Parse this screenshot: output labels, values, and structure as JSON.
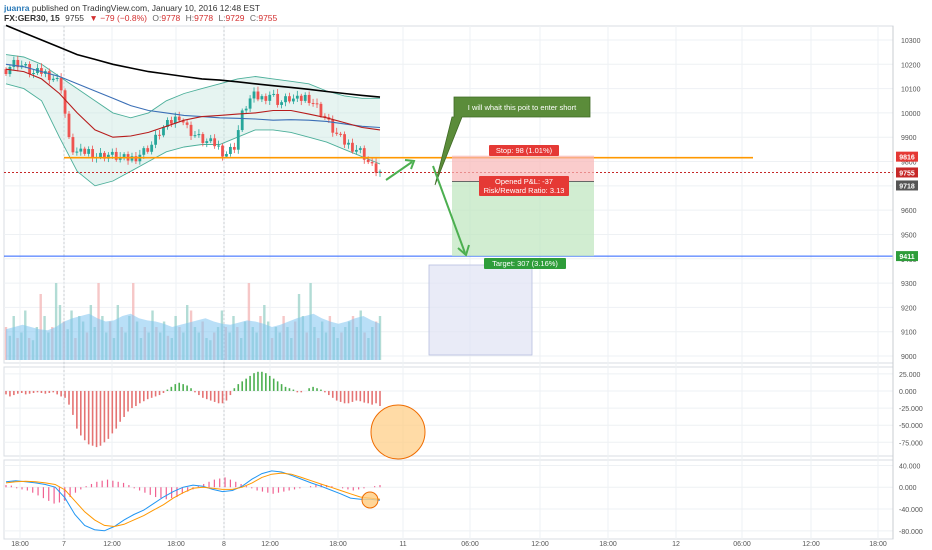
{
  "header": {
    "user": "juanra",
    "published": "published on TradingView.com, January 10, 2016 12:48 EST",
    "symbol": "FX:GER30, 15",
    "last": "9755",
    "arrow": "▼",
    "change": "−79 (−0.8%)",
    "o_label": "O:",
    "o_val": "9778",
    "h_label": "H:",
    "h_val": "9778",
    "l_label": "L:",
    "l_val": "9729",
    "c_label": "C:",
    "c_val": "9755"
  },
  "colors": {
    "up": "#26a69a",
    "down": "#ef5350",
    "orange": "#ff9800",
    "target_line": "#2962ff",
    "green_arrow": "#4caf50",
    "callout": "#5b8c3a"
  },
  "chart_data": {
    "type": "candlestick",
    "symbol": "FX:GER30",
    "interval": "15",
    "price_axis": {
      "ticks": [
        "10300",
        "10200",
        "10100",
        "10000",
        "9900",
        "9800",
        "9700",
        "9600",
        "9500",
        "9400",
        "9300",
        "9200",
        "9100",
        "9000"
      ],
      "min": 8985,
      "max": 10345
    },
    "time_axis": {
      "ticks": [
        "18:00",
        "7",
        "12:00",
        "18:00",
        "8",
        "12:00",
        "18:00",
        "11",
        "06:00",
        "12:00",
        "18:00",
        "12",
        "06:00",
        "12:00",
        "18:00"
      ]
    },
    "levels": {
      "resistance": 9816,
      "last_price": 9755,
      "entry": 9718,
      "target": 9411
    },
    "price_labels": {
      "resistance": "9816",
      "last": "9755",
      "entry": "9718",
      "target": "9411"
    },
    "close_path": [
      10180,
      10210,
      10190,
      10160,
      10170,
      10150,
      10120,
      9860,
      9830,
      9845,
      9820,
      9830,
      9820,
      9810,
      9815,
      9840,
      9870,
      9930,
      9960,
      9990,
      9930,
      9900,
      9880,
      9870,
      9830,
      9860,
      10010,
      10070,
      10060,
      10080,
      10040,
      10060,
      10050,
      10070,
      10030,
      9980,
      9920,
      9880,
      9860,
      9840,
      9780,
      9755
    ],
    "moving_averages": [
      {
        "color": "#000000",
        "values": [
          10360,
          10330,
          10300,
          10270,
          10240,
          10220,
          10200,
          10185,
          10170,
          10160,
          10150,
          10140,
          10135,
          10128,
          10120,
          10112,
          10105,
          10097,
          10088,
          10080,
          10072,
          10065
        ]
      },
      {
        "color": "#3b6fb6",
        "values": [
          10200,
          10190,
          10170,
          10150,
          10120,
          10090,
          10060,
          10030,
          10010,
          10000,
          9990,
          9985,
          9980,
          9978,
          9975,
          9970,
          9972,
          9970,
          9965,
          9955,
          9945,
          9940
        ]
      },
      {
        "color": "#b71c1c",
        "values": [
          10180,
          10170,
          10140,
          10080,
          10000,
          9930,
          9900,
          9905,
          9920,
          9945,
          9970,
          9985,
          9990,
          9995,
          10000,
          10010,
          10010,
          9995,
          9980,
          9960,
          9940,
          9930
        ]
      }
    ],
    "bollinger": {
      "upper": [
        10240,
        10230,
        10200,
        10150,
        10100,
        10050,
        10000,
        9980,
        10000,
        10050,
        10080,
        10100,
        10120,
        10140,
        10150,
        10140,
        10130,
        10120,
        10090,
        10070,
        10060,
        10060
      ],
      "lower": [
        10120,
        10100,
        10050,
        9900,
        9760,
        9700,
        9720,
        9760,
        9800,
        9840,
        9860,
        9870,
        9870,
        9900,
        9930,
        9930,
        9920,
        9900,
        9880,
        9850,
        9820,
        9790
      ]
    },
    "volume": {
      "bars": [
        30,
        22,
        40,
        20,
        25,
        45,
        20,
        18,
        30,
        60,
        40,
        25,
        30,
        70,
        50,
        35,
        28,
        45,
        20,
        40,
        35,
        25,
        50,
        30,
        70,
        40,
        25,
        35,
        20,
        50,
        30,
        25,
        40,
        70,
        35,
        20,
        30,
        25,
        45,
        30,
        25,
        35,
        22,
        20,
        40,
        30,
        25,
        50,
        45,
        30,
        25,
        35,
        20,
        18,
        25,
        30,
        45,
        30,
        25,
        40,
        30,
        20,
        35,
        70,
        30,
        25,
        40,
        50,
        35,
        20,
        30,
        25,
        40,
        30,
        20,
        35,
        60,
        40,
        25,
        70,
        30,
        20,
        35,
        25,
        40,
        30,
        20,
        25,
        30,
        35,
        40,
        30,
        45,
        25,
        20,
        30,
        35,
        40
      ],
      "ma": [
        28,
        30,
        32,
        30,
        28,
        27,
        30,
        35,
        38,
        40,
        42,
        38,
        35,
        36,
        40,
        42,
        38,
        36,
        35,
        33,
        30,
        32,
        34,
        36,
        38,
        35,
        33,
        32,
        34,
        36,
        35,
        33,
        30,
        32,
        35,
        38,
        40,
        42,
        38,
        35,
        33,
        35,
        38,
        40,
        36,
        33
      ]
    },
    "histogram_oscillator": {
      "ticks": [
        "25.000",
        "0.000",
        "-25.000",
        "-50.000",
        "-75.000"
      ],
      "min": -95,
      "max": 35,
      "values": [
        -5,
        -8,
        -6,
        -4,
        -3,
        -5,
        -4,
        -3,
        -2,
        -3,
        -4,
        -3,
        -2,
        -5,
        -8,
        -10,
        -20,
        -35,
        -55,
        -65,
        -72,
        -78,
        -80,
        -82,
        -80,
        -75,
        -70,
        -62,
        -55,
        -45,
        -38,
        -30,
        -25,
        -22,
        -18,
        -15,
        -12,
        -10,
        -8,
        -6,
        -3,
        2,
        6,
        10,
        12,
        10,
        8,
        4,
        -2,
        -6,
        -10,
        -12,
        -14,
        -16,
        -18,
        -18,
        -14,
        -6,
        4,
        10,
        14,
        18,
        22,
        26,
        28,
        28,
        26,
        22,
        18,
        14,
        10,
        6,
        4,
        2,
        -2,
        -2,
        0,
        4,
        6,
        4,
        2,
        -2,
        -6,
        -10,
        -14,
        -16,
        -18,
        -18,
        -16,
        -14,
        -15,
        -17,
        -18,
        -20,
        -18,
        -22
      ]
    },
    "macd": {
      "ticks": [
        "40.000",
        "0.000",
        "-40.000",
        "-80.000"
      ],
      "min": -95,
      "max": 50,
      "macd_line": [
        10,
        12,
        10,
        8,
        5,
        0,
        -20,
        -50,
        -70,
        -78,
        -80,
        -72,
        -60,
        -50,
        -42,
        -30,
        -18,
        -8,
        0,
        4,
        2,
        -4,
        -8,
        -6,
        2,
        15,
        25,
        30,
        28,
        22,
        15,
        8,
        2,
        -5,
        -12,
        -20,
        -22,
        -22,
        -24
      ],
      "signal_line": [
        8,
        10,
        11,
        10,
        8,
        5,
        -5,
        -25,
        -45,
        -60,
        -70,
        -72,
        -68,
        -60,
        -52,
        -42,
        -32,
        -20,
        -10,
        -2,
        0,
        -2,
        -4,
        -4,
        0,
        8,
        18,
        24,
        26,
        24,
        18,
        12,
        6,
        0,
        -6,
        -12,
        -18,
        -20,
        -22
      ],
      "histogram": [
        4,
        3,
        -2,
        -4,
        -6,
        -10,
        -15,
        -20,
        -25,
        -30,
        -28,
        -25,
        -18,
        -10,
        -4,
        2,
        6,
        10,
        12,
        14,
        12,
        10,
        8,
        4,
        -2,
        -6,
        -10,
        -14,
        -18,
        -20,
        -22,
        -20,
        -18,
        -12,
        -8,
        -4,
        2,
        6,
        10,
        14,
        16,
        18,
        14,
        10,
        6,
        2,
        -2,
        -6,
        -8,
        -10,
        -12,
        -10,
        -8,
        -6,
        -4,
        -2,
        0,
        2,
        4,
        6,
        4,
        2,
        0,
        -2,
        -4,
        -6,
        -4,
        -2,
        0,
        2,
        4
      ]
    },
    "annotations": {
      "callout_text": "I will whait this poit to enter short",
      "stop_label": "Stop: 98 (1.01%)",
      "pl_label": "Opened P&L: -37",
      "rr_label": "Risk/Reward Ratio: 3.13",
      "target_label": "Target: 307 (3.16%)"
    }
  }
}
